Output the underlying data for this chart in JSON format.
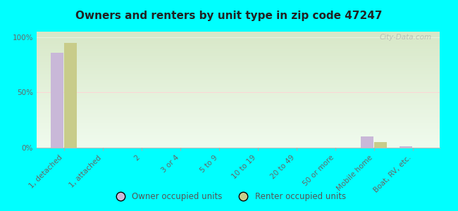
{
  "title": "Owners and renters by unit type in zip code 47247",
  "categories": [
    "1, detached",
    "1, attached",
    "2",
    "3 or 4",
    "5 to 9",
    "10 to 19",
    "20 to 49",
    "50 or more",
    "Mobile home",
    "Boat, RV, etc."
  ],
  "owner_values": [
    86,
    0,
    0,
    0,
    0,
    0,
    0,
    0,
    10,
    1
  ],
  "renter_values": [
    95,
    0,
    0,
    0,
    0,
    0,
    0,
    0,
    5,
    0
  ],
  "owner_color": "#c9b8d8",
  "renter_color": "#c8cc8a",
  "background_color": "#00ffff",
  "plot_bg_top_left": "#d8e8c8",
  "plot_bg_bottom_right": "#f0fbee",
  "watermark": "City-Data.com",
  "ylabel_ticks": [
    "0%",
    "50%",
    "100%"
  ],
  "ytick_vals": [
    0,
    50,
    100
  ],
  "bar_width": 0.35,
  "ylim": [
    0,
    105
  ]
}
